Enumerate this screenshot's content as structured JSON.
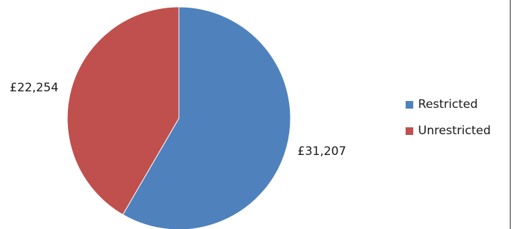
{
  "chart_data": {
    "type": "pie",
    "title": "",
    "slices": [
      {
        "name": "Restricted",
        "value": 31207,
        "label": "£31,207",
        "color": "#4f81bd"
      },
      {
        "name": "Unrestricted",
        "value": 22254,
        "label": "£22,254",
        "color": "#c0504d"
      }
    ],
    "start_angle_deg": 0,
    "direction": "clockwise",
    "legend": {
      "placement": "right",
      "entries": [
        "Restricted",
        "Unrestricted"
      ]
    }
  }
}
